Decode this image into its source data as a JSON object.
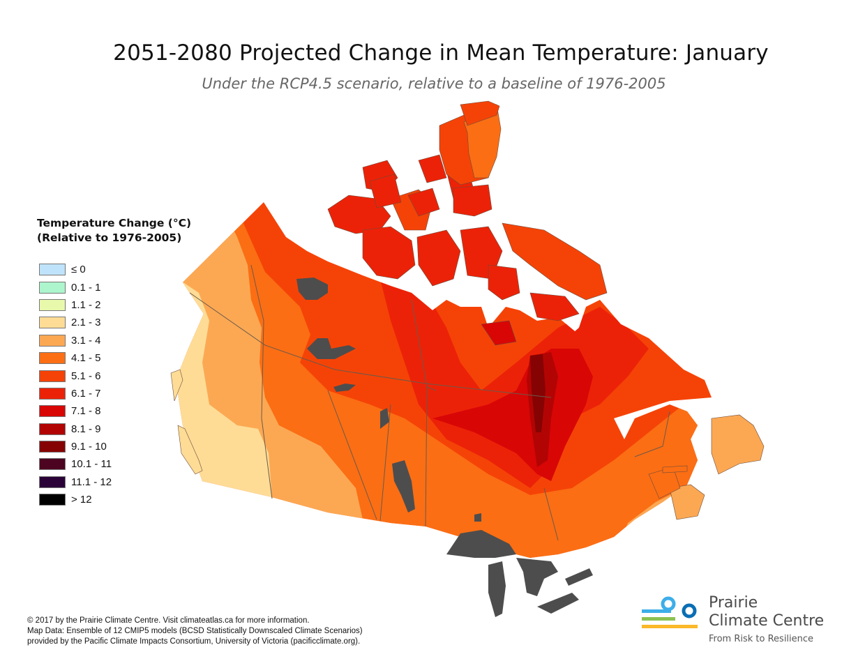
{
  "header": {
    "title": "2051-2080 Projected Change in Mean Temperature: January",
    "subtitle": "Under the RCP4.5 scenario, relative to a baseline of 1976-2005"
  },
  "legend": {
    "title_line1": "Temperature Change (°C)",
    "title_line2": "(Relative to 1976-2005)",
    "items": [
      {
        "label": "≤ 0",
        "color": "#bfe3fb"
      },
      {
        "label": "0.1 - 1",
        "color": "#adf5cd"
      },
      {
        "label": "1.1 - 2",
        "color": "#e8f9ac"
      },
      {
        "label": "2.1 - 3",
        "color": "#fedc96"
      },
      {
        "label": "3.1 - 4",
        "color": "#fca853"
      },
      {
        "label": "4.1 - 5",
        "color": "#fb6e14"
      },
      {
        "label": "5.1 - 6",
        "color": "#f54307"
      },
      {
        "label": "6.1 - 7",
        "color": "#ec2208"
      },
      {
        "label": "7.1 - 8",
        "color": "#d90606"
      },
      {
        "label": "8.1 - 9",
        "color": "#b30404"
      },
      {
        "label": "9.1 - 10",
        "color": "#860303"
      },
      {
        "label": "10.1 - 11",
        "color": "#4d0420"
      },
      {
        "label": "11.1 - 12",
        "color": "#2a0238"
      },
      {
        "label": "> 12",
        "color": "#000000"
      }
    ]
  },
  "map": {
    "region": "Canada",
    "lake_color": "#4d4d4d",
    "border_color": "#6b5a4a"
  },
  "credits": {
    "line1": "© 2017 by the Prairie Climate Centre. Visit climateatlas.ca for more information.",
    "line2": "Map Data: Ensemble of 12 CMIP5 models (BCSD Statistically Downscaled Climate Scenarios)",
    "line3": "provided by the Pacific Climate Impacts Consortium, University of Victoria (pacificclimate.org)."
  },
  "logo": {
    "name_line1": "Prairie",
    "name_line2": "Climate Centre",
    "tagline": "From Risk to Resilience",
    "colors": {
      "blue_light": "#3daee9",
      "blue_dark": "#0a6eb4",
      "green": "#8cc152",
      "yellow": "#fbb829"
    }
  }
}
